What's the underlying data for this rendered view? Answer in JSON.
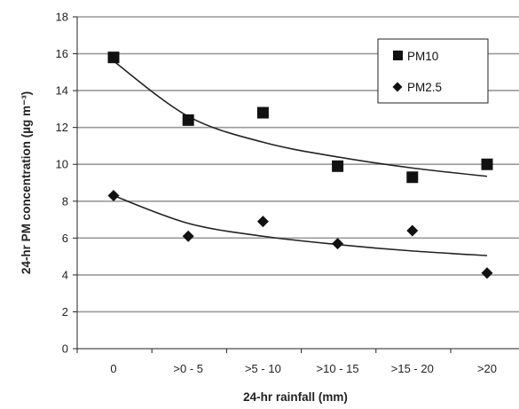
{
  "chart_data": {
    "type": "scatter",
    "categories": [
      "0",
      ">0 - 5",
      ">5 - 10",
      ">10 - 15",
      ">15 - 20",
      ">20"
    ],
    "series": [
      {
        "name": "PM10",
        "marker": "square",
        "color": "#111111",
        "values": [
          15.8,
          12.4,
          12.8,
          9.9,
          9.3,
          10.0
        ],
        "trendline": [
          15.6,
          12.6,
          11.2,
          10.4,
          9.8,
          9.35
        ]
      },
      {
        "name": "PM2.5",
        "marker": "diamond",
        "color": "#111111",
        "values": [
          8.3,
          6.1,
          6.9,
          5.7,
          6.4,
          4.1
        ],
        "trendline": [
          8.3,
          6.8,
          6.1,
          5.65,
          5.3,
          5.05
        ]
      }
    ],
    "trendline_color": "#222222",
    "xlabel": "24-hr rainfall (mm)",
    "ylabel": "24-hr PM concentration (µg m⁻³)",
    "ylim": [
      0,
      18
    ],
    "yticks": [
      "0",
      "2",
      "4",
      "6",
      "8",
      "10",
      "12",
      "14",
      "16",
      "18"
    ],
    "grid": "horizontal",
    "grid_color": "#9a9a9a",
    "legend_position": "top-right"
  }
}
